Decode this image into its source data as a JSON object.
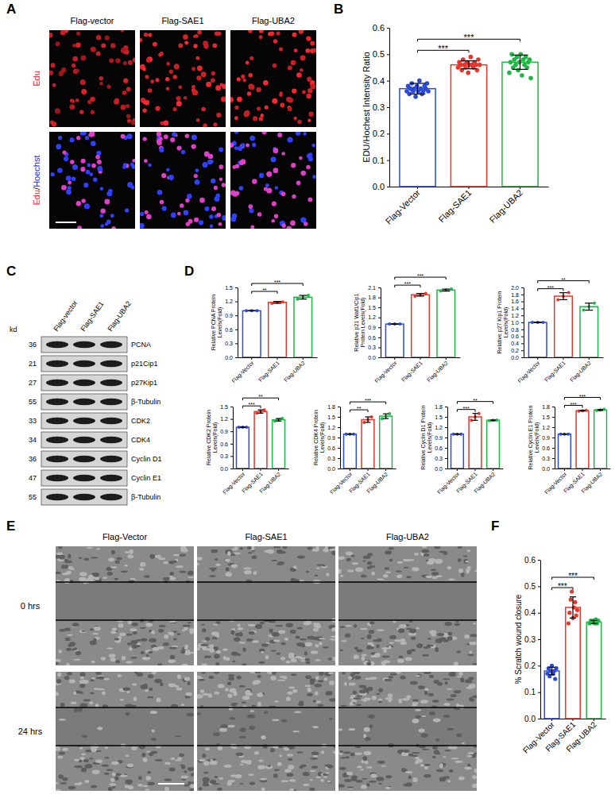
{
  "image_panel": {
    "letter": "A",
    "columns": [
      "Flag-vector",
      "Flag-SAE1",
      "Flag-UBA2"
    ],
    "rows": [
      [
        {
          "text": "Edu",
          "color": "#e8202a"
        }
      ],
      [
        {
          "text": "Edu",
          "color": "#e8202a"
        },
        {
          "text": "/",
          "color": "#000000"
        },
        {
          "text": "Hoechst",
          "color": "#2030e0"
        }
      ]
    ]
  },
  "blot": {
    "letter": "C",
    "kd_label": "kd",
    "lanes": [
      "Flag-vector",
      "Flag-SAE1",
      "Flag-UBA2"
    ],
    "rows": [
      {
        "kd": 36,
        "label": "PCNA"
      },
      {
        "kd": 21,
        "label": "p21Cip1"
      },
      {
        "kd": 27,
        "label": "p27Kip1"
      },
      {
        "kd": 55,
        "label": "β-Tubulin"
      },
      {
        "kd": 33,
        "label": "CDK2"
      },
      {
        "kd": 34,
        "label": "CDK4"
      },
      {
        "kd": 36,
        "label": "Cyclin D1"
      },
      {
        "kd": 47,
        "label": "Cyclin E1"
      },
      {
        "kd": 55,
        "label": "β-Tubulin"
      }
    ]
  },
  "scratch": {
    "letter": "E",
    "columns": [
      "Flag-Vector",
      "Flag-SAE1",
      "Flag-UBA2"
    ],
    "rows": [
      "0 hrs",
      "24 hrs"
    ]
  },
  "chart_data": [
    {
      "type": "bar",
      "panel": "B",
      "ylabel": "EDU/Hochest Intensity Ratio",
      "categories": [
        "Flag-Vector",
        "Flag-SAE1",
        "Flag-UBA2"
      ],
      "colors": [
        "#2a4bd7",
        "#e8362a",
        "#1fb547"
      ],
      "values": [
        0.37,
        0.46,
        0.47
      ],
      "errors": [
        0.02,
        0.015,
        0.027
      ],
      "points": [
        [
          0.36,
          0.38,
          0.35,
          0.37,
          0.39,
          0.36,
          0.37,
          0.34,
          0.38,
          0.36,
          0.4,
          0.37,
          0.35,
          0.36,
          0.38,
          0.37,
          0.39,
          0.36
        ],
        [
          0.45,
          0.47,
          0.46,
          0.44,
          0.48,
          0.46,
          0.45,
          0.47,
          0.43,
          0.46,
          0.49,
          0.46,
          0.45,
          0.47,
          0.46,
          0.44,
          0.48,
          0.46
        ],
        [
          0.43,
          0.47,
          0.5,
          0.45,
          0.48,
          0.46,
          0.49,
          0.44,
          0.47,
          0.5,
          0.42,
          0.48,
          0.46,
          0.49,
          0.45,
          0.47,
          0.48,
          0.41
        ]
      ],
      "ylim": [
        0,
        0.6
      ],
      "yticks": [
        {
          "value": 0,
          "label": "0.0"
        },
        0.1,
        0.2,
        0.3,
        0.4,
        0.5,
        0.6
      ],
      "significance": [
        {
          "between": [
            "Flag-Vector",
            "Flag-SAE1"
          ],
          "label": "***"
        },
        {
          "between": [
            "Flag-Vector",
            "Flag-UBA2"
          ],
          "label": "***"
        }
      ]
    },
    {
      "type": "bar",
      "panel": "D",
      "ylabel": "Relative PCNA Protein Levels(Fold)",
      "categories": [
        "Flag-Vector",
        "Flag-SAE1",
        "Flag-UBA2"
      ],
      "colors": [
        "#2a4bd7",
        "#e8362a",
        "#1fb547"
      ],
      "values": [
        1.0,
        1.18,
        1.29
      ],
      "errors": [
        0.003,
        0.02,
        0.04
      ],
      "points": [
        [
          1.0,
          1.0,
          1.0
        ],
        [
          1.16,
          1.18,
          1.19
        ],
        [
          1.25,
          1.29,
          1.33
        ]
      ],
      "ylim": [
        0,
        1.5
      ],
      "yticks": [
        {
          "value": 0,
          "label": "0.0"
        },
        0.3,
        0.6,
        0.9,
        1.2,
        1.5
      ],
      "significance": [
        {
          "between": [
            "Flag-Vector",
            "Flag-SAE1"
          ],
          "label": "**"
        },
        {
          "between": [
            "Flag-Vector",
            "Flag-UBA2"
          ],
          "label": "***"
        }
      ]
    },
    {
      "type": "bar",
      "ylabel": "Relative p21 Waf1/Cip1 Protein Levels(Fold)",
      "categories": [
        "Flag-Vector",
        "Flag-SAE1",
        "Flag-UBA2"
      ],
      "colors": [
        "#2a4bd7",
        "#e8362a",
        "#1fb547"
      ],
      "values": [
        1.0,
        1.88,
        2.02
      ],
      "errors": [
        0.003,
        0.04,
        0.03
      ],
      "points": [
        [
          1.0,
          1.0,
          1.0
        ],
        [
          1.84,
          1.88,
          1.92
        ],
        [
          1.99,
          2.02,
          2.05
        ]
      ],
      "ylim": [
        0,
        2.1
      ],
      "yticks": [
        {
          "value": 0,
          "label": "0.0"
        },
        0.3,
        0.6,
        0.9,
        1.2,
        1.5,
        1.8,
        2.1
      ],
      "significance": [
        {
          "between": [
            "Flag-Vector",
            "Flag-SAE1"
          ],
          "label": "***"
        },
        {
          "between": [
            "Flag-Vector",
            "Flag-UBA2"
          ],
          "label": "***"
        }
      ]
    },
    {
      "type": "bar",
      "ylabel": "Relative p27 Kip1 Protein Levels(Fold)",
      "categories": [
        "Flag-Vector",
        "Flag-SAE1",
        "Flag-UBA2"
      ],
      "colors": [
        "#2a4bd7",
        "#e8362a",
        "#1fb547"
      ],
      "values": [
        1.0,
        1.75,
        1.45
      ],
      "errors": [
        0.003,
        0.1,
        0.1
      ],
      "points": [
        [
          1.0,
          1.0,
          1.0
        ],
        [
          1.65,
          1.75,
          1.85
        ],
        [
          1.35,
          1.45,
          1.55
        ]
      ],
      "ylim": [
        0,
        2.0
      ],
      "yticks": [
        {
          "value": 0,
          "label": "0.0"
        },
        0.2,
        0.4,
        0.6,
        0.8,
        {
          "value": 1,
          "label": "1.0"
        },
        1.2,
        1.4,
        1.6,
        1.8,
        {
          "value": 2,
          "label": "2.0"
        }
      ],
      "significance": [
        {
          "between": [
            "Flag-Vector",
            "Flag-SAE1"
          ],
          "label": "***"
        },
        {
          "between": [
            "Flag-Vector",
            "Flag-UBA2"
          ],
          "label": "**"
        }
      ]
    },
    {
      "type": "bar",
      "ylabel": "Relative CDK2 Protein Levels(Fold)",
      "categories": [
        "Flag-Vector",
        "Flag-SAE1",
        "Flag-UBA2"
      ],
      "colors": [
        "#2a4bd7",
        "#e8362a",
        "#1fb547"
      ],
      "values": [
        1.0,
        1.38,
        1.18
      ],
      "errors": [
        0.003,
        0.04,
        0.03
      ],
      "points": [
        [
          1.0,
          1.0,
          1.0
        ],
        [
          1.34,
          1.38,
          1.42
        ],
        [
          1.15,
          1.18,
          1.21
        ]
      ],
      "ylim": [
        0,
        1.5
      ],
      "yticks": [
        {
          "value": 0,
          "label": "0.0"
        },
        0.3,
        0.6,
        0.9,
        1.2,
        1.5
      ],
      "significance": [
        {
          "between": [
            "Flag-Vector",
            "Flag-SAE1"
          ],
          "label": "***"
        },
        {
          "between": [
            "Flag-Vector",
            "Flag-UBA2"
          ],
          "label": "**"
        }
      ]
    },
    {
      "type": "bar",
      "ylabel": "Relative CDK4 Protein Levels(Fold)",
      "categories": [
        "Flag-Vector",
        "Flag-SAE1",
        "Flag-UBA2"
      ],
      "colors": [
        "#2a4bd7",
        "#e8362a",
        "#1fb547"
      ],
      "values": [
        1.0,
        1.42,
        1.52
      ],
      "errors": [
        0.003,
        0.08,
        0.07
      ],
      "points": [
        [
          1.0,
          1.0,
          1.0
        ],
        [
          1.34,
          1.42,
          1.5
        ],
        [
          1.45,
          1.52,
          1.59
        ]
      ],
      "ylim": [
        0,
        1.8
      ],
      "yticks": [
        {
          "value": 0,
          "label": "0.0"
        },
        0.3,
        0.6,
        0.9,
        1.2,
        1.5,
        1.8
      ],
      "significance": [
        {
          "between": [
            "Flag-Vector",
            "Flag-SAE1"
          ],
          "label": "**"
        },
        {
          "between": [
            "Flag-Vector",
            "Flag-UBA2"
          ],
          "label": "***"
        }
      ]
    },
    {
      "type": "bar",
      "ylabel": "Relative Cyclin D1 Protein Levels(Fold)",
      "categories": [
        "Flag-Vector",
        "Flag-SAE1",
        "Flag-UBA2"
      ],
      "colors": [
        "#2a4bd7",
        "#e8362a",
        "#1fb547"
      ],
      "values": [
        1.0,
        1.5,
        1.4
      ],
      "errors": [
        0.003,
        0.1,
        0.01
      ],
      "points": [
        [
          1.0,
          1.0,
          1.0
        ],
        [
          1.4,
          1.5,
          1.6
        ],
        [
          1.39,
          1.4,
          1.41
        ]
      ],
      "ylim": [
        0,
        1.8
      ],
      "yticks": [
        {
          "value": 0,
          "label": "0.0"
        },
        0.3,
        0.6,
        0.9,
        1.2,
        1.5,
        1.8
      ],
      "significance": [
        {
          "between": [
            "Flag-Vector",
            "Flag-SAE1"
          ],
          "label": "***"
        },
        {
          "between": [
            "Flag-Vector",
            "Flag-UBA2"
          ],
          "label": "**"
        }
      ]
    },
    {
      "type": "bar",
      "ylabel": "Relative Cyclin E1 Protein Levels(Fold)",
      "categories": [
        "Flag-Vector",
        "Flag-SAE1",
        "Flag-UBA2"
      ],
      "colors": [
        "#2a4bd7",
        "#e8362a",
        "#1fb547"
      ],
      "values": [
        1.0,
        1.68,
        1.7
      ],
      "errors": [
        0.003,
        0.01,
        0.015
      ],
      "points": [
        [
          1.0,
          1.0,
          1.0
        ],
        [
          1.67,
          1.68,
          1.69
        ],
        [
          1.69,
          1.7,
          1.72
        ]
      ],
      "ylim": [
        0,
        1.8
      ],
      "yticks": [
        {
          "value": 0,
          "label": "0.0"
        },
        0.3,
        0.6,
        0.9,
        1.2,
        1.5,
        1.8
      ],
      "significance": [
        {
          "between": [
            "Flag-Vector",
            "Flag-SAE1"
          ],
          "label": "***"
        },
        {
          "between": [
            "Flag-Vector",
            "Flag-UBA2"
          ],
          "label": "***"
        }
      ]
    },
    {
      "type": "bar",
      "panel": "F",
      "ylabel": "% Scratch wound closure",
      "categories": [
        "Flag-Vector",
        "Flag-SAE1",
        "Flag-UBA2"
      ],
      "colors": [
        "#2a4bd7",
        "#e8362a",
        "#1fb547"
      ],
      "values": [
        0.18,
        0.42,
        0.365
      ],
      "errors": [
        0.014,
        0.04,
        0.006
      ],
      "points": [
        [
          0.17,
          0.19,
          0.16,
          0.18,
          0.2,
          0.17,
          0.18,
          0.15,
          0.19
        ],
        [
          0.36,
          0.4,
          0.45,
          0.48,
          0.38,
          0.42,
          0.44,
          0.39,
          0.41
        ],
        [
          0.36,
          0.37,
          0.365,
          0.37,
          0.36,
          0.375,
          0.36,
          0.37
        ]
      ],
      "ylim": [
        0,
        0.6
      ],
      "yticks": [
        {
          "value": 0,
          "label": "0.0"
        },
        0.1,
        0.2,
        0.3,
        0.4,
        0.5,
        0.6
      ],
      "significance": [
        {
          "between": [
            "Flag-Vector",
            "Flag-SAE1"
          ],
          "label": "***"
        },
        {
          "between": [
            "Flag-Vector",
            "Flag-UBA2"
          ],
          "label": "***"
        }
      ]
    }
  ]
}
